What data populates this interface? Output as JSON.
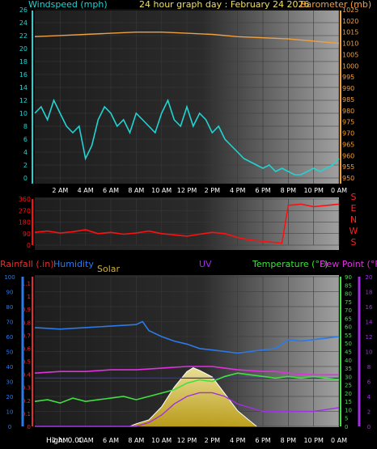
{
  "header": {
    "windspeed_label": "Windspeed (mph)",
    "title": "24 hour graph day : February 24 2026",
    "barometer_label": "Barometer (mb)"
  },
  "x_axis": {
    "ticks": [
      "2 AM",
      "4 AM",
      "6 AM",
      "8 AM",
      "10 AM",
      "12 PM",
      "2 PM",
      "4 PM",
      "6 PM",
      "8 PM",
      "10 PM",
      "0 AM"
    ]
  },
  "bottom_panel_labels": {
    "rainfall": "Rainfall (.in)",
    "humidity": "Humidity",
    "solar": "Solar",
    "uv": "UV",
    "temperature": "Temperature (°F)",
    "dewpoint": "Dew Point (°F)"
  },
  "corner_label": "High: 0.00",
  "colors": {
    "wind": "#22d3d3",
    "barometer": "#f0a040",
    "direction": "#ff1010",
    "humidity": "#2a7ae8",
    "temperature": "#40e040",
    "dewpoint": "#e030e0",
    "solar": "#e8d030",
    "uv_line": "#3030c0",
    "rain_axis": "#e03030",
    "uv_axis": "#a030e0"
  },
  "chart_data": [
    {
      "type": "line",
      "name": "windspeed-and-barometer",
      "xlim": [
        0,
        24
      ],
      "ylim_left": [
        0,
        26
      ],
      "yticks_left": [
        "0",
        "2",
        "4",
        "6",
        "8",
        "10",
        "12",
        "14",
        "16",
        "18",
        "20",
        "22",
        "24",
        "26"
      ],
      "ylim_right": [
        950,
        1025
      ],
      "yticks_right": [
        "950",
        "955",
        "960",
        "965",
        "970",
        "975",
        "980",
        "985",
        "990",
        "995",
        "1000",
        "1005",
        "1010",
        "1015",
        "1020",
        "1025"
      ],
      "series": [
        {
          "key": "wind",
          "axis": "left",
          "x": [
            0,
            0.5,
            1,
            1.5,
            2,
            2.5,
            3,
            3.5,
            4,
            4.5,
            5,
            5.5,
            6,
            6.5,
            7,
            7.5,
            8,
            8.5,
            9,
            9.5,
            10,
            10.5,
            11,
            11.5,
            12,
            12.5,
            13,
            13.5,
            14,
            14.5,
            15,
            15.5,
            16,
            16.5,
            17,
            17.5,
            18,
            18.5,
            19,
            19.5,
            20,
            20.5,
            21,
            21.5,
            22,
            22.5,
            23,
            23.5,
            24
          ],
          "values": [
            10,
            11,
            9,
            12,
            10,
            8,
            7,
            8,
            3,
            5,
            9,
            11,
            10,
            8,
            9,
            7,
            10,
            9,
            8,
            7,
            10,
            12,
            9,
            8,
            11,
            8,
            10,
            9,
            7,
            8,
            6,
            5,
            4,
            3,
            2.5,
            2,
            1.5,
            2,
            1,
            1.5,
            1,
            0.5,
            0.5,
            1,
            1.5,
            1,
            1.5,
            2,
            3
          ]
        },
        {
          "key": "barometer",
          "axis": "right",
          "x": [
            0,
            2,
            4,
            6,
            8,
            10,
            12,
            14,
            16,
            18,
            20,
            22,
            24
          ],
          "values": [
            1013,
            1013.5,
            1014,
            1014.5,
            1015,
            1015,
            1014.5,
            1014,
            1013,
            1012.5,
            1012,
            1011,
            1010
          ]
        }
      ]
    },
    {
      "type": "line",
      "name": "wind-direction",
      "xlim": [
        0,
        24
      ],
      "ylim": [
        0,
        360
      ],
      "yticks": [
        "0",
        "90",
        "180",
        "270",
        "360"
      ],
      "direction_labels": [
        "S",
        "E",
        "N",
        "W",
        "S"
      ],
      "series": [
        {
          "key": "direction",
          "x": [
            0,
            1,
            2,
            3,
            4,
            5,
            6,
            7,
            8,
            9,
            10,
            11,
            12,
            13,
            14,
            15,
            16,
            17,
            18,
            19,
            19.5,
            20,
            21,
            22,
            23,
            24
          ],
          "values": [
            100,
            110,
            95,
            105,
            120,
            90,
            100,
            85,
            95,
            110,
            90,
            80,
            70,
            85,
            100,
            90,
            60,
            40,
            30,
            20,
            15,
            310,
            320,
            300,
            310,
            320
          ]
        }
      ]
    },
    {
      "type": "line",
      "name": "rain-humidity-solar-uv-temperature-dewpoint",
      "xlim": [
        0,
        24
      ],
      "yticks_rain": [
        "0",
        "0.1",
        "0.2",
        "0.3",
        "0.4",
        "0.5",
        "0.6",
        "0.7",
        "0.8",
        "0.9",
        "1",
        "1.1"
      ],
      "yticks_humidity": [
        "0",
        "10",
        "20",
        "30",
        "40",
        "50",
        "60",
        "70",
        "80",
        "90",
        "100"
      ],
      "yticks_temperature": [
        "0",
        "5",
        "10",
        "15",
        "20",
        "25",
        "30",
        "35",
        "40",
        "45",
        "50",
        "55",
        "60",
        "65",
        "70",
        "75",
        "80",
        "85",
        "90"
      ],
      "yticks_uv": [
        "0",
        "2",
        "4",
        "6",
        "8",
        "10",
        "12",
        "14",
        "16",
        "18",
        "20"
      ],
      "series": [
        {
          "key": "humidity",
          "scale": "humidity",
          "x": [
            0,
            2,
            4,
            6,
            8,
            8.5,
            9,
            10,
            11,
            12,
            13,
            14,
            15,
            16,
            17,
            18,
            19,
            19.5,
            20,
            21,
            22,
            23,
            24
          ],
          "values": [
            66,
            65,
            66,
            67,
            68,
            70,
            64,
            60,
            57,
            55,
            52,
            51,
            50,
            49,
            50,
            51,
            52,
            55,
            58,
            57,
            58,
            59,
            60
          ]
        },
        {
          "key": "temperature",
          "scale": "temperature",
          "x": [
            0,
            1,
            2,
            3,
            4,
            5,
            6,
            7,
            8,
            9,
            10,
            11,
            12,
            13,
            14,
            15,
            16,
            17,
            18,
            19,
            20,
            21,
            22,
            23,
            24
          ],
          "values": [
            15,
            16,
            14,
            17,
            15,
            16,
            17,
            18,
            16,
            18,
            20,
            22,
            26,
            28,
            27,
            30,
            32,
            31,
            30,
            29,
            30,
            29,
            30,
            29,
            28
          ]
        },
        {
          "key": "dewpoint",
          "scale": "temperature",
          "x": [
            0,
            2,
            4,
            6,
            8,
            10,
            12,
            14,
            15,
            16,
            18,
            19,
            20,
            22,
            24
          ],
          "values": [
            32,
            33,
            33,
            34,
            34,
            35,
            36,
            36,
            35,
            34,
            33,
            33,
            32,
            31,
            31
          ]
        },
        {
          "key": "uv",
          "scale": "uv",
          "x": [
            0,
            6,
            8,
            9,
            10,
            11,
            12,
            13,
            14,
            15,
            16,
            17,
            18,
            19,
            20,
            22,
            24
          ],
          "values": [
            0,
            0,
            0,
            0.5,
            1.5,
            3,
            4,
            4.5,
            4.5,
            4,
            3,
            2.5,
            2,
            2,
            2,
            2,
            2.5
          ]
        },
        {
          "key": "solar",
          "scale": "rain",
          "x": [
            7.5,
            8,
            9,
            10,
            11,
            12,
            12.5,
            13,
            14,
            15,
            16,
            17,
            17.5
          ],
          "values": [
            0,
            0.02,
            0.05,
            0.15,
            0.3,
            0.42,
            0.45,
            0.43,
            0.38,
            0.25,
            0.12,
            0.04,
            0
          ]
        },
        {
          "key": "uv_level",
          "scale": "temperature",
          "x": [
            0,
            24
          ],
          "values": [
            29,
            29
          ]
        }
      ]
    }
  ]
}
